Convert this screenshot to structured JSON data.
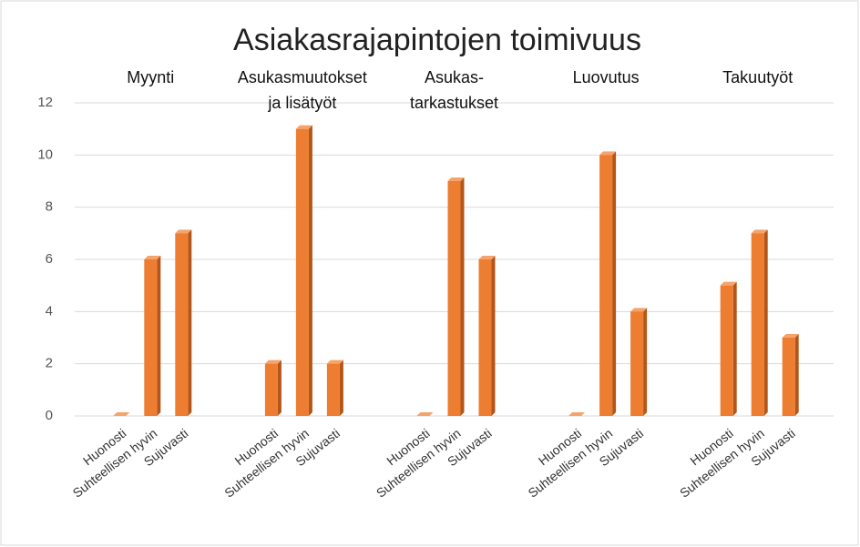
{
  "chart_data": {
    "type": "bar",
    "title": "Asiakasrajapintojen toimivuus",
    "groups": [
      {
        "name": [
          "Myynti"
        ],
        "categories": [
          "Huonosti",
          "Suhteellisen hyvin",
          "Sujuvasti"
        ],
        "values": [
          0,
          6,
          7
        ]
      },
      {
        "name": [
          "Asukasmuutokset",
          "ja lisätyöt"
        ],
        "categories": [
          "Huonosti",
          "Suhteellisen hyvin",
          "Sujuvasti"
        ],
        "values": [
          2,
          11,
          2
        ]
      },
      {
        "name": [
          "Asukas-",
          "tarkastukset"
        ],
        "categories": [
          "Huonosti",
          "Suhteellisen hyvin",
          "Sujuvasti"
        ],
        "values": [
          0,
          9,
          6
        ]
      },
      {
        "name": [
          "Luovutus"
        ],
        "categories": [
          "Huonosti",
          "Suhteellisen hyvin",
          "Sujuvasti"
        ],
        "values": [
          0,
          10,
          4
        ]
      },
      {
        "name": [
          "Takuutyöt"
        ],
        "categories": [
          "Huonosti",
          "Suhteellisen hyvin",
          "Sujuvasti"
        ],
        "values": [
          5,
          7,
          3
        ]
      }
    ],
    "color": "#ed7d31",
    "ylim": [
      0,
      12
    ],
    "yticks": [
      0,
      2,
      4,
      6,
      8,
      10,
      12
    ],
    "grid": true
  }
}
